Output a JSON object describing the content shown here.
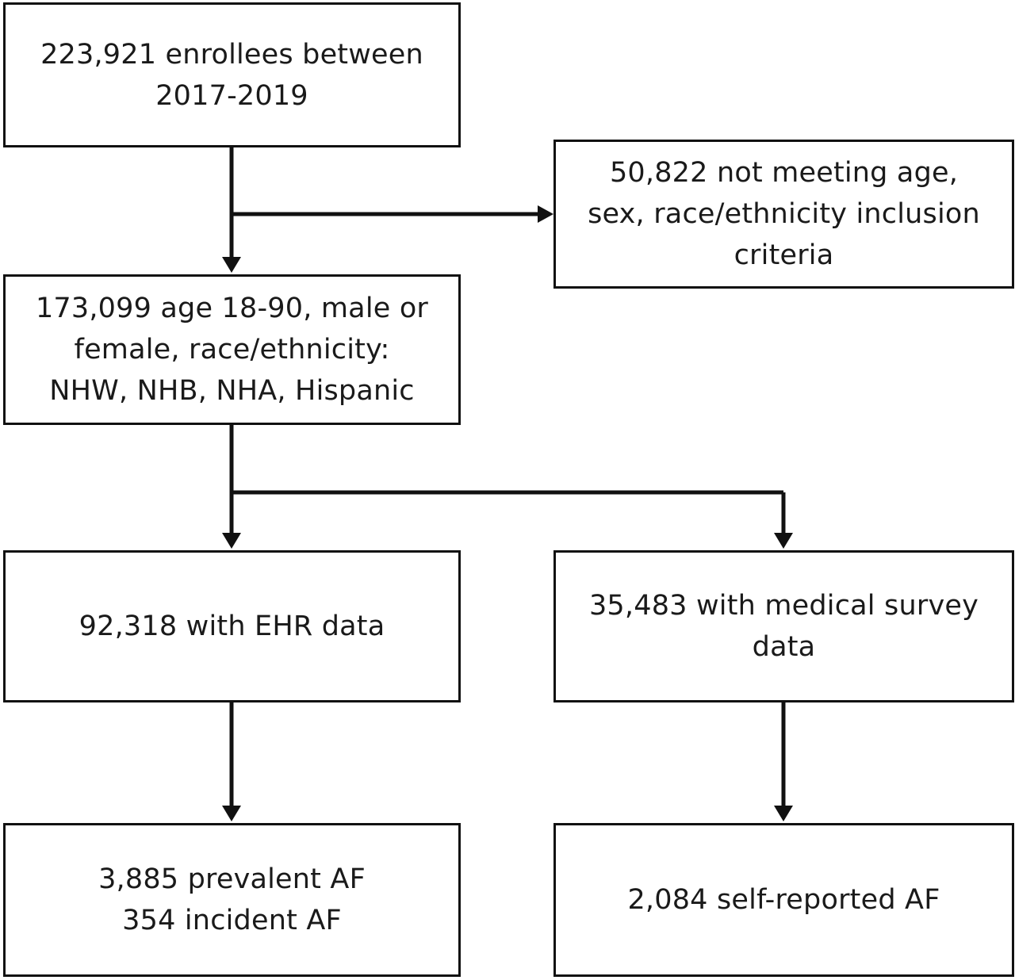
{
  "flowchart": {
    "box_enrollees": [
      "223,921 enrollees between",
      "2017-2019"
    ],
    "box_excluded": [
      "50,822 not meeting age,",
      "sex, race/ethnicity inclusion",
      "criteria"
    ],
    "box_included": [
      "173,099 age 18-90, male or",
      "female, race/ethnicity:",
      "NHW, NHB, NHA, Hispanic"
    ],
    "box_ehr": [
      "92,318 with EHR data"
    ],
    "box_survey": [
      "35,483 with medical survey",
      "data"
    ],
    "box_ehr_af": [
      "3,885 prevalent AF",
      "354 incident AF"
    ],
    "box_survey_af": [
      "2,084 self-reported AF"
    ]
  },
  "colors": {
    "line": "#111111",
    "box_border": "#111111",
    "text": "#1a1a1a",
    "background": "#ffffff"
  }
}
